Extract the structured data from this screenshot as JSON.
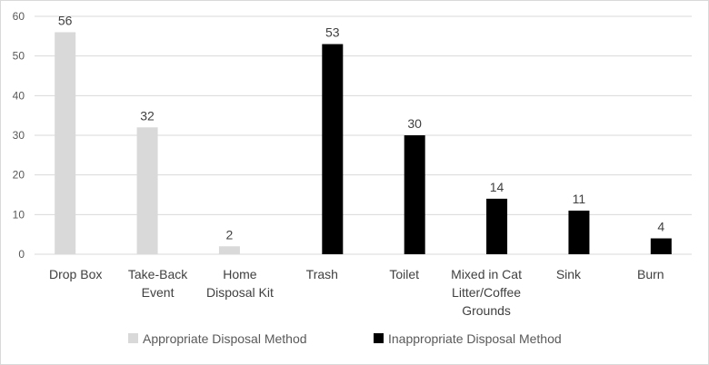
{
  "chart_data": {
    "type": "bar",
    "title": "",
    "xlabel": "",
    "ylabel": "",
    "ylim": [
      0,
      60
    ],
    "yticks": [
      0,
      10,
      20,
      30,
      40,
      50,
      60
    ],
    "grid": true,
    "legend_position": "bottom",
    "categories": [
      [
        "Drop Box"
      ],
      [
        "Take-Back",
        "Event"
      ],
      [
        "Home",
        "Disposal Kit"
      ],
      [
        "Trash"
      ],
      [
        "Toilet"
      ],
      [
        "Mixed in Cat",
        "Litter/Coffee",
        "Grounds"
      ],
      [
        "Sink"
      ],
      [
        "Burn"
      ]
    ],
    "series": [
      {
        "name": "Appropriate Disposal Method",
        "color": "#d9d9d9",
        "values": [
          56,
          32,
          2,
          null,
          null,
          null,
          null,
          null
        ]
      },
      {
        "name": "Inappropriate Disposal Method",
        "color": "#000000",
        "values": [
          null,
          null,
          null,
          53,
          30,
          14,
          11,
          4
        ]
      }
    ]
  }
}
